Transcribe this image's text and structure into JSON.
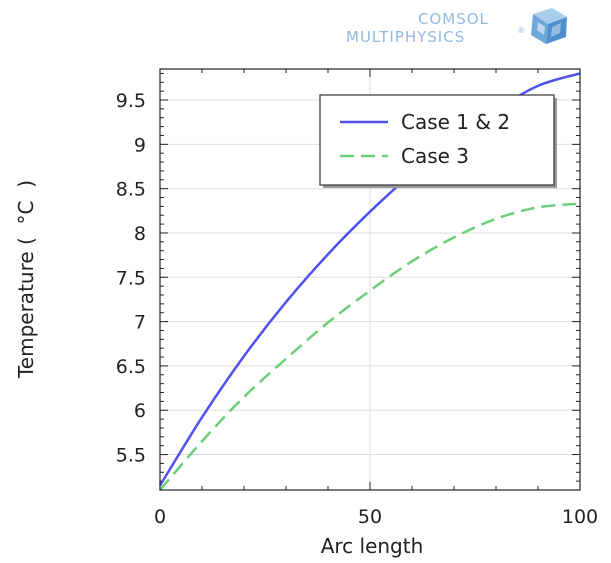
{
  "logo": {
    "line1": "COMSOL",
    "line2": "MULTIPHYSICS",
    "mark": "®",
    "icon": "comsol-cube-icon"
  },
  "chart_data": {
    "type": "line",
    "xlabel": "Arc length",
    "ylabel": "Temperature (  °C  )",
    "xlim": [
      0,
      100
    ],
    "ylim": [
      5.1,
      9.85
    ],
    "xticks": [
      0,
      50,
      100
    ],
    "yticks": [
      5.5,
      6,
      6.5,
      7,
      7.5,
      8,
      8.5,
      9,
      9.5
    ],
    "ytick_labels": [
      "5.5",
      "6",
      "6.5",
      "7",
      "7.5",
      "8",
      "8.5",
      "9",
      "9.5"
    ],
    "xtick_labels": [
      "0",
      "50",
      "100"
    ],
    "grid": true,
    "legend_position": "top-right",
    "series": [
      {
        "name": "Case 1 & 2",
        "color": "#5050ee",
        "dash": "solid",
        "x": [
          0,
          10,
          20,
          30,
          40,
          50,
          60,
          70,
          80,
          90,
          100
        ],
        "y": [
          5.15,
          5.92,
          6.61,
          7.22,
          7.76,
          8.24,
          8.67,
          9.05,
          9.39,
          9.66,
          9.8
        ]
      },
      {
        "name": "Case 3",
        "color": "#6ccf78",
        "dash": "dashed",
        "x": [
          0,
          10,
          20,
          30,
          40,
          50,
          60,
          70,
          80,
          90,
          100
        ],
        "y": [
          5.1,
          5.65,
          6.15,
          6.58,
          6.99,
          7.35,
          7.68,
          7.95,
          8.16,
          8.29,
          8.33
        ]
      }
    ]
  }
}
